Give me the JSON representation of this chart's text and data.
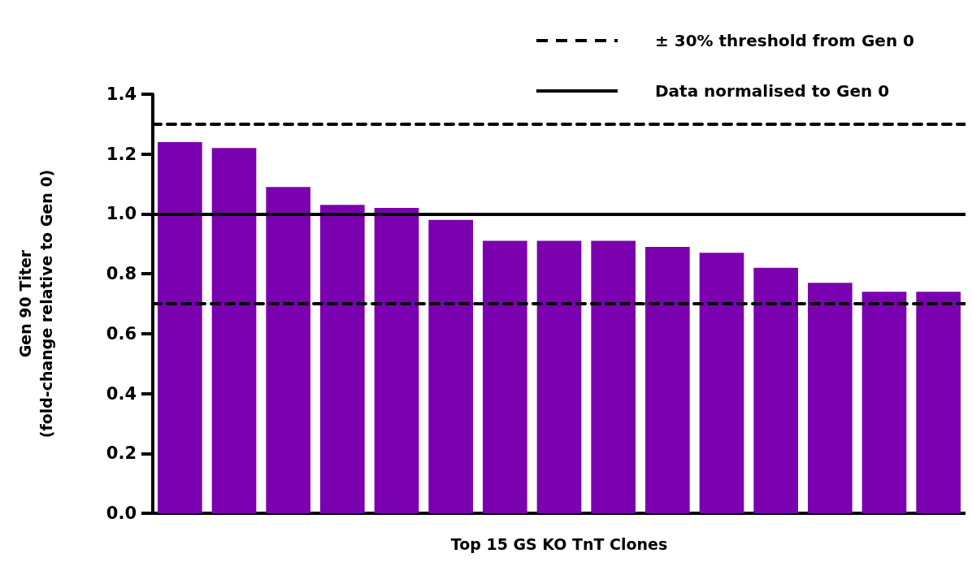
{
  "chart_data": {
    "type": "bar",
    "xlabel": "Top 15 GS KO TnT Clones",
    "ylabel": "Gen 90 Titer\n(fold-change relative to Gen 0)",
    "categories": [
      null,
      null,
      null,
      null,
      null,
      null,
      null,
      null,
      null,
      null,
      null,
      null,
      null,
      null,
      null
    ],
    "values": [
      1.24,
      1.22,
      1.09,
      1.03,
      1.02,
      0.98,
      0.91,
      0.91,
      0.91,
      0.89,
      0.87,
      0.82,
      0.77,
      0.74,
      0.74
    ],
    "color": "#7b00b0",
    "ylim": [
      0,
      1.4
    ],
    "yticks": [
      {
        "value": 0,
        "label": "0.0"
      },
      {
        "value": 0.2,
        "label": "0.2"
      },
      {
        "value": 0.4,
        "label": "0.4"
      },
      {
        "value": 0.6,
        "label": "0.6"
      },
      {
        "value": 0.8,
        "label": "0.8"
      },
      {
        "value": 1,
        "label": "1.0"
      },
      {
        "value": 1.2,
        "label": "1.2"
      },
      {
        "value": 1.4,
        "label": "1.4"
      }
    ],
    "ref_lines": [
      {
        "axis": "y",
        "value": 1.3,
        "label": "± 30% threshold from Gen 0",
        "line_style": "dashed",
        "color": "#000000"
      },
      {
        "axis": "y",
        "value": 0.7,
        "line_style": "dashed",
        "color": "#000000"
      },
      {
        "axis": "y",
        "value": 1,
        "label": "Data normalised to Gen 0",
        "line_style": "solid",
        "color": "#000000"
      }
    ],
    "grid": false,
    "legend": "top right",
    "tick_labels": "y"
  }
}
